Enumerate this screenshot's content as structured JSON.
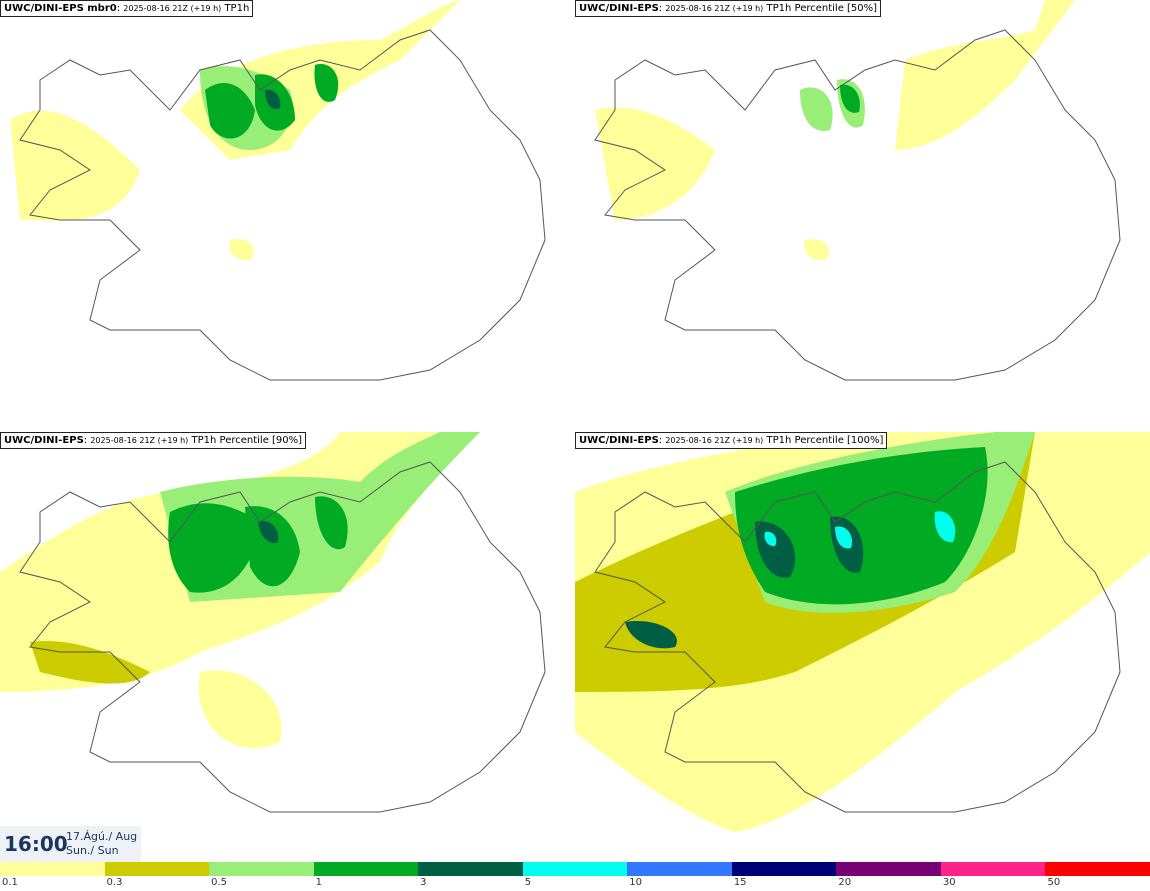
{
  "panels": [
    {
      "model": "UWC/DINI-EPS mbr0",
      "run": "2025-08-16 21Z (+19 h)",
      "field": "TP1h"
    },
    {
      "model": "UWC/DINI-EPS",
      "run": "2025-08-16 21Z (+19 h)",
      "field": "TP1h Percentile [50%]"
    },
    {
      "model": "UWC/DINI-EPS",
      "run": "2025-08-16 21Z (+19 h)",
      "field": "TP1h Percentile [90%]"
    },
    {
      "model": "UWC/DINI-EPS",
      "run": "2025-08-16 21Z (+19 h)",
      "field": "TP1h Percentile [100%]"
    }
  ],
  "valid_time": {
    "time": "16:00",
    "date_line1": "17.Ágú./ Aug",
    "date_line2": "Sun./ Sun"
  },
  "legend": {
    "ticks": [
      "0.1",
      "0.3",
      "0.5",
      "1",
      "3",
      "5",
      "10",
      "15",
      "20",
      "30",
      "50"
    ],
    "colors": [
      "#ffff99",
      "#cccc00",
      "#99ee77",
      "#00aa22",
      "#005e44",
      "#00ffee",
      "#3377ff",
      "#000077",
      "#770077",
      "#ff2288",
      "#ff0000"
    ]
  }
}
